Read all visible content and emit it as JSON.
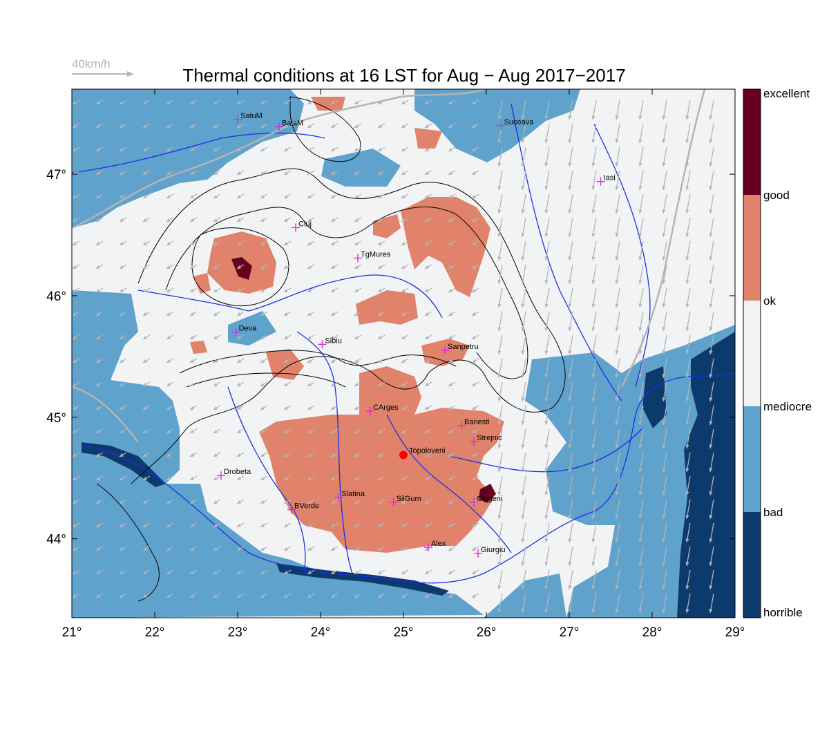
{
  "title": "Thermal conditions at 16 LST for Aug − Aug  2017−2017",
  "wind_scale_label": "40km/h",
  "map": {
    "lon_range": [
      21,
      29
    ],
    "lat_range": [
      43.35,
      47.7
    ],
    "lon_ticks": [
      {
        "value": 21,
        "label": "21°"
      },
      {
        "value": 22,
        "label": "22°"
      },
      {
        "value": 23,
        "label": "23°"
      },
      {
        "value": 24,
        "label": "24°"
      },
      {
        "value": 25,
        "label": "25°"
      },
      {
        "value": 26,
        "label": "26°"
      },
      {
        "value": 27,
        "label": "27°"
      },
      {
        "value": 28,
        "label": "28°"
      },
      {
        "value": 29,
        "label": "29°"
      }
    ],
    "lat_ticks": [
      {
        "value": 44,
        "label": "44°"
      },
      {
        "value": 45,
        "label": "45°"
      },
      {
        "value": 46,
        "label": "46°"
      },
      {
        "value": 47,
        "label": "47°"
      }
    ],
    "cities": [
      {
        "name": "SatuM",
        "lon": 23.0,
        "lat": 47.45
      },
      {
        "name": "BaiaM",
        "lon": 23.5,
        "lat": 47.39
      },
      {
        "name": "Suceava",
        "lon": 26.18,
        "lat": 47.4
      },
      {
        "name": "Iasi",
        "lon": 27.38,
        "lat": 46.94
      },
      {
        "name": "Cluj",
        "lon": 23.7,
        "lat": 46.56
      },
      {
        "name": "TgMures",
        "lon": 24.45,
        "lat": 46.31
      },
      {
        "name": "Deva",
        "lon": 22.98,
        "lat": 45.7
      },
      {
        "name": "Sibiu",
        "lon": 24.02,
        "lat": 45.6
      },
      {
        "name": "Sanpetru",
        "lon": 25.5,
        "lat": 45.55
      },
      {
        "name": "CArges",
        "lon": 24.6,
        "lat": 45.05
      },
      {
        "name": "Banesti",
        "lon": 25.7,
        "lat": 44.93
      },
      {
        "name": "Strejnic",
        "lon": 25.85,
        "lat": 44.8
      },
      {
        "name": "Drobeta",
        "lon": 22.8,
        "lat": 44.52
      },
      {
        "name": "Slatina",
        "lon": 24.22,
        "lat": 44.34
      },
      {
        "name": "SilGum",
        "lon": 24.88,
        "lat": 44.3
      },
      {
        "name": "Clogeni",
        "lon": 25.85,
        "lat": 44.3
      },
      {
        "name": "BVerde",
        "lon": 23.65,
        "lat": 44.24
      },
      {
        "name": "Alex",
        "lon": 25.3,
        "lat": 43.93
      },
      {
        "name": "Giurgiu",
        "lon": 25.9,
        "lat": 43.88
      }
    ],
    "highlight_point": {
      "name": "Topoloveni",
      "lon": 25.0,
      "lat": 44.69
    }
  },
  "legend": {
    "categories": [
      {
        "label": "excellent",
        "color": "#67001f"
      },
      {
        "label": "good",
        "color": "#e0836a"
      },
      {
        "label": "ok",
        "color": "#f2f3f5"
      },
      {
        "label": "mediocre",
        "color": "#5fa2cc"
      },
      {
        "label": "bad",
        "color": "#0d3a6c"
      },
      {
        "label": "horrible",
        "color": ""
      }
    ]
  },
  "colors": {
    "ok": "#f2f3f5",
    "mediocre": "#5fa2cc",
    "good": "#e0836a",
    "bad": "#0d3a6c",
    "excellent": "#67001f",
    "river": "#1a2ee6",
    "border": "#b4b4b4",
    "contour": "#000000",
    "city_marker": "#e020e0",
    "highlight": "#ff0000",
    "wind": "#b4b4b4"
  }
}
